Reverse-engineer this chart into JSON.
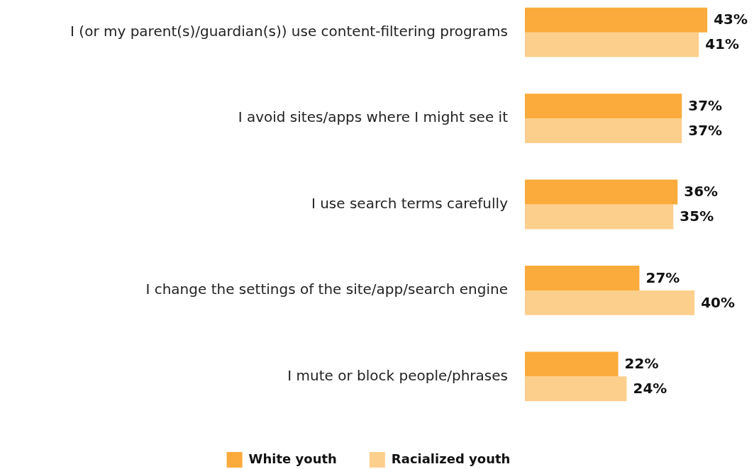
{
  "chart_data": {
    "type": "bar",
    "orientation": "horizontal",
    "tick_labels": "y",
    "legend": "bottom",
    "categories": [
      "I (or my parent(s)/guardian(s)) use content-filtering programs",
      "I avoid sites/apps where I might see it",
      "I use search terms carefully",
      "I change the settings of the site/app/search engine",
      "I mute or block people/phrases"
    ],
    "series": [
      {
        "name": "White youth",
        "color": "#fbab3b",
        "values": [
          43,
          37,
          36,
          27,
          22
        ],
        "value_labels": [
          "43%",
          "37%",
          "36%",
          "27%",
          "22%"
        ]
      },
      {
        "name": "Racialized youth",
        "color": "#fdcf8c",
        "values": [
          41,
          37,
          35,
          40,
          24
        ],
        "value_labels": [
          "41%",
          "37%",
          "35%",
          "40%",
          "24%"
        ]
      }
    ]
  }
}
